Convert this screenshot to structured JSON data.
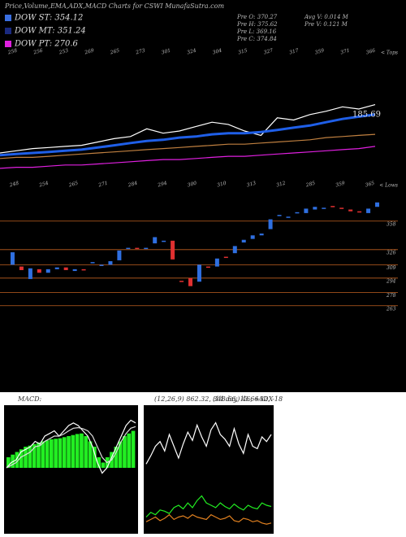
{
  "header": {
    "title": "Price,Volume,EMA,ADX,MACD Charts for CSWI MunafaSutra.com",
    "legend": [
      {
        "label": "DOW ST: 354.12",
        "color": "#3a6fe0"
      },
      {
        "label": "DOW MT: 351.24",
        "color": "#1a2a80"
      },
      {
        "label": "DOW PT: 270.6",
        "color": "#e020e0"
      }
    ],
    "info_left": [
      "Pre O: 370.27",
      "Pre H: 375.62",
      "Pre L: 369.16",
      "Pre C: 374.84"
    ],
    "info_right": [
      "Avg V: 0.014 M",
      "Pre V: 0.121 M"
    ],
    "tops_label": "< Tops",
    "lows_label": "< Lows",
    "tops": [
      "258",
      "256",
      "253",
      "269",
      "265",
      "273",
      "301",
      "324",
      "304",
      "315",
      "327",
      "317",
      "359",
      "371",
      "366"
    ],
    "lows": [
      "248",
      "254",
      "265",
      "271",
      "284",
      "294",
      "300",
      "310",
      "313",
      "312",
      "285",
      "359",
      "365"
    ],
    "macd_label": "MACD:",
    "macd_params": "(12,26,9) 862.32, 348.66, 13.66ADX",
    "adx_params": "(14 day) 46, +32, -18"
  },
  "chart_data": [
    {
      "type": "line",
      "annotation": "185.69",
      "ylim": [
        0,
        100
      ],
      "series": [
        {
          "name": "Price",
          "color": "#ffffff",
          "values": [
            20,
            22,
            24,
            25,
            26,
            27,
            30,
            33,
            35,
            42,
            38,
            40,
            44,
            48,
            46,
            40,
            36,
            52,
            50,
            55,
            58,
            62,
            60,
            64
          ]
        },
        {
          "name": "EMA short",
          "color": "#1f5fe8",
          "values": [
            18,
            19,
            20,
            21,
            22,
            23,
            25,
            27,
            29,
            31,
            32,
            34,
            35,
            37,
            38,
            38,
            39,
            41,
            43,
            45,
            48,
            51,
            53,
            55
          ]
        },
        {
          "name": "EMA mid",
          "color": "#c08040",
          "values": [
            15,
            16,
            16,
            17,
            18,
            19,
            20,
            21,
            22,
            23,
            24,
            25,
            26,
            27,
            28,
            28,
            29,
            30,
            31,
            32,
            34,
            35,
            36,
            37
          ]
        },
        {
          "name": "EMA long",
          "color": "#e020e0",
          "values": [
            6,
            7,
            7,
            8,
            9,
            9,
            10,
            11,
            12,
            13,
            14,
            14,
            15,
            16,
            17,
            17,
            18,
            19,
            20,
            21,
            22,
            23,
            24,
            26
          ]
        }
      ]
    },
    {
      "type": "candlestick",
      "ylim": [
        250,
        387
      ],
      "yticks": [
        358,
        326,
        309,
        294,
        278,
        263
      ],
      "grid": true,
      "up_color": "#2f6fe0",
      "down_color": "#e03030",
      "open": [
        309,
        307,
        293,
        304,
        300,
        304,
        306,
        302,
        304,
        311,
        309,
        309,
        314,
        328,
        328,
        327,
        333,
        336,
        336,
        291,
        294,
        290,
        307,
        307,
        318,
        322,
        334,
        338,
        342,
        349,
        365,
        362,
        367,
        367,
        371,
        373,
        375,
        373,
        371,
        369,
        367,
        374
      ],
      "close": [
        323,
        303,
        305,
        300,
        304,
        306,
        303,
        304,
        303,
        312,
        309,
        313,
        325,
        328,
        327,
        328,
        340,
        336,
        315,
        290,
        285,
        309,
        306,
        316,
        317,
        330,
        337,
        342,
        344,
        360,
        365,
        363,
        368,
        372,
        374,
        373,
        374,
        372,
        369,
        368,
        372,
        379
      ]
    },
    {
      "type": "macd",
      "ylim": [
        -10,
        10
      ],
      "bars": [
        2,
        2.5,
        3,
        3.5,
        4,
        4.2,
        4.5,
        4.8,
        5,
        5.2,
        5.4,
        5.5,
        5.6,
        5.8,
        6,
        6.2,
        6.4,
        6.5,
        6,
        5,
        4,
        2,
        1,
        2,
        3,
        4,
        5,
        6,
        6.5,
        7
      ],
      "series": [
        {
          "name": "MACD",
          "color": "#ffffff",
          "values": [
            0,
            1,
            1.5,
            3,
            3.5,
            4,
            5,
            4.5,
            6,
            6.5,
            7,
            6,
            7,
            8,
            8.5,
            8,
            7,
            6,
            4,
            1,
            -1,
            0,
            2,
            4,
            6,
            8,
            9,
            8.5
          ]
        },
        {
          "name": "Signal",
          "color": "#dddddd",
          "values": [
            0,
            0.5,
            1,
            2,
            2.5,
            3,
            4,
            4.2,
            5,
            5.5,
            6,
            6,
            6.4,
            7,
            7.5,
            7.6,
            7.4,
            7,
            6,
            4,
            2,
            1,
            1.5,
            3,
            5,
            6.5,
            7.5,
            7.8
          ]
        }
      ]
    },
    {
      "type": "adx",
      "ylim": [
        0,
        100
      ],
      "series": [
        {
          "name": "ADX",
          "color": "#ffffff",
          "values": [
            55,
            62,
            70,
            74,
            66,
            80,
            70,
            60,
            72,
            82,
            75,
            88,
            78,
            70,
            84,
            90,
            80,
            76,
            70,
            85,
            72,
            64,
            80,
            70,
            68,
            78,
            74,
            80
          ]
        },
        {
          "name": "+DI",
          "color": "#22ee22",
          "values": [
            10,
            14,
            12,
            16,
            15,
            13,
            18,
            20,
            17,
            22,
            18,
            24,
            28,
            22,
            20,
            18,
            22,
            19,
            17,
            21,
            18,
            16,
            20,
            18,
            17,
            22,
            20,
            19
          ]
        },
        {
          "name": "-DI",
          "color": "#e08020",
          "values": [
            6,
            8,
            10,
            7,
            9,
            12,
            8,
            10,
            11,
            9,
            12,
            10,
            9,
            8,
            12,
            10,
            8,
            9,
            11,
            7,
            6,
            9,
            8,
            6,
            7,
            5,
            4,
            5
          ]
        }
      ]
    }
  ]
}
